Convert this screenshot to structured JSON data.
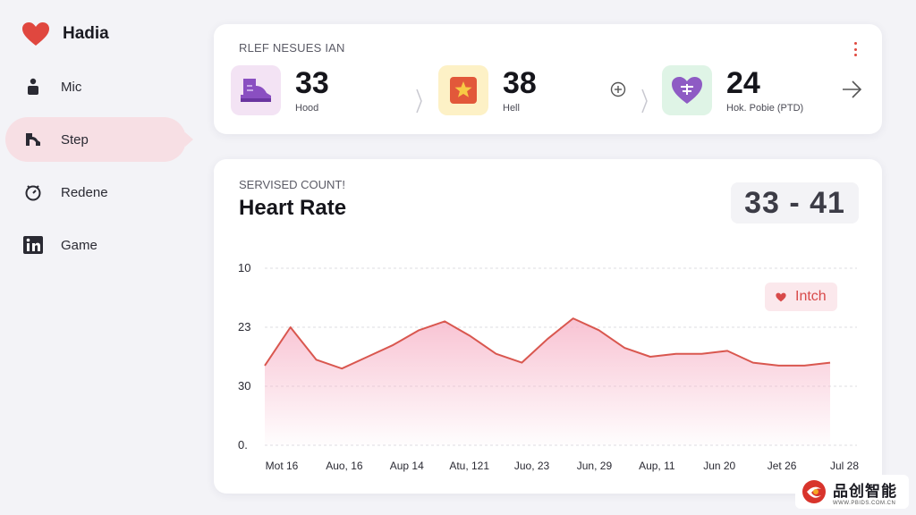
{
  "brand": {
    "name": "Hadia",
    "icon": "heart-icon",
    "color": "#e0473f"
  },
  "sidebar": {
    "items": [
      {
        "label": "Mic",
        "icon": "person-icon",
        "active": false
      },
      {
        "label": "Step",
        "icon": "shoe-icon",
        "active": true
      },
      {
        "label": "Redene",
        "icon": "timer-icon",
        "active": false
      },
      {
        "label": "Game",
        "icon": "linkedin-icon",
        "active": false
      }
    ]
  },
  "stats": {
    "title": "RLEF NESUES IAN",
    "items": [
      {
        "value": "33",
        "label": "Hood",
        "icon": "shoe-icon",
        "tile_color": "#f3e3f4",
        "icon_color": "#8a4fc1"
      },
      {
        "value": "38",
        "label": "Hell",
        "icon": "star-badge-icon",
        "tile_color": "#fdf1c6",
        "icon_color": "#e2583a"
      },
      {
        "value": "24",
        "label": "Hok. Pobie (PTD)",
        "icon": "heart-pulse-icon",
        "tile_color": "#dff4e6",
        "icon_color": "#8e5bc4"
      }
    ]
  },
  "chart_panel": {
    "subtitle": "SERVISED COUNT!",
    "title": "Heart Rate",
    "range": "33 - 41",
    "legend": "Intch"
  },
  "chart_data": {
    "type": "area",
    "y_tick_labels": [
      "10",
      "23",
      "30",
      "0."
    ],
    "x_tick_labels": [
      "Mot 16",
      "Auo, 16",
      "Aup 14",
      "Atu, 121",
      "Juo, 23",
      "Jun, 29",
      "Aup, 11",
      "Jun 20",
      "Jet 26",
      "Jul 28"
    ],
    "series": [
      {
        "values": [
          27,
          40,
          29,
          26,
          30,
          34,
          39,
          42,
          37,
          31,
          28,
          36,
          43,
          39,
          33,
          30,
          31,
          31,
          32,
          28,
          27,
          27,
          28
        ]
      }
    ],
    "ylim": [
      0,
      60
    ],
    "grid": true,
    "line_color": "#d9574f",
    "fill_color": "#f7b8cb"
  },
  "watermark": {
    "text": "品创智能",
    "url": "WWW.PBIDS.COM.CN"
  }
}
